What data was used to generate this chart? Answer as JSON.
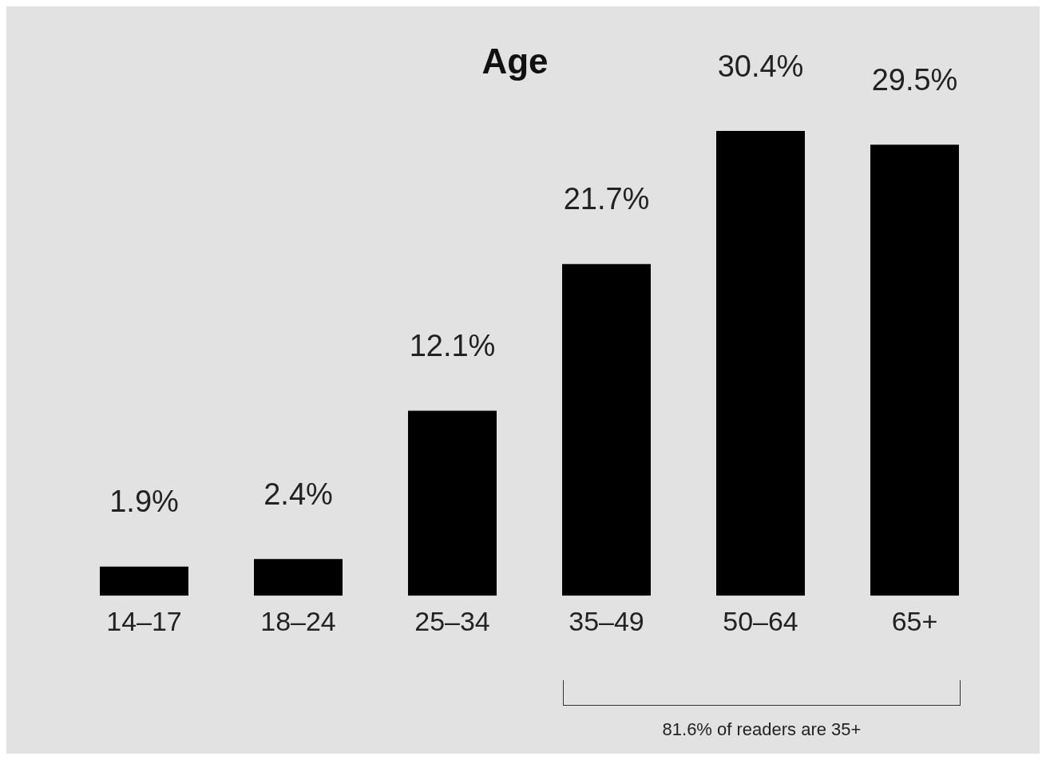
{
  "chart_data": {
    "type": "bar",
    "title": "Age",
    "categories": [
      "14–17",
      "18–24",
      "25–34",
      "35–49",
      "50–64",
      "65+"
    ],
    "values": [
      1.9,
      2.4,
      12.1,
      21.7,
      30.4,
      29.5
    ],
    "value_labels": [
      "1.9%",
      "2.4%",
      "12.1%",
      "21.7%",
      "30.4%",
      "29.5%"
    ],
    "color": "#000000",
    "annotations": [
      "81.6% of readers are 35+"
    ],
    "tick_labels": "x",
    "grid": false,
    "legend": false
  }
}
